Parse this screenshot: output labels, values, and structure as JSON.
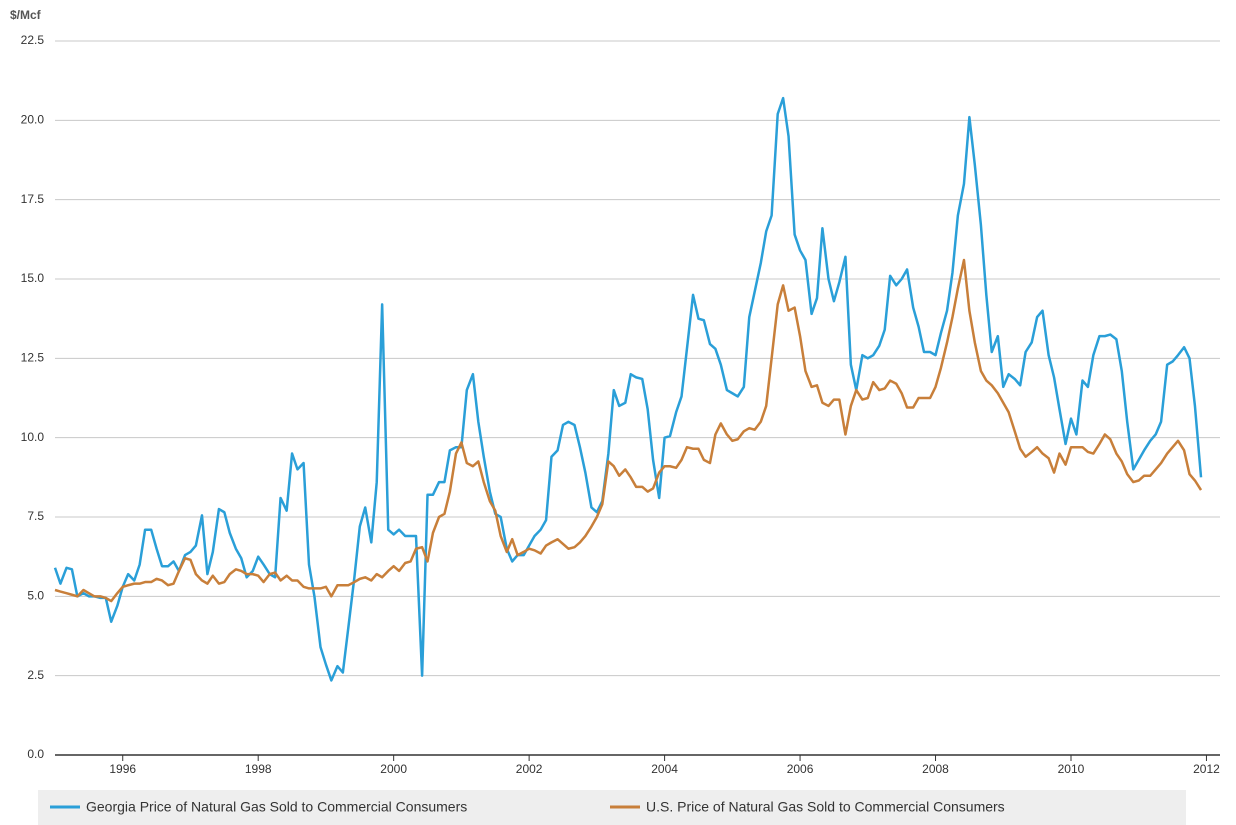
{
  "chart_data": {
    "type": "line",
    "y_label": "$/Mcf",
    "x": [
      1995.0,
      1995.08,
      1995.17,
      1995.25,
      1995.33,
      1995.42,
      1995.5,
      1995.58,
      1995.67,
      1995.75,
      1995.83,
      1995.92,
      1996.0,
      1996.08,
      1996.17,
      1996.25,
      1996.33,
      1996.42,
      1996.5,
      1996.58,
      1996.67,
      1996.75,
      1996.83,
      1996.92,
      1997.0,
      1997.08,
      1997.17,
      1997.25,
      1997.33,
      1997.42,
      1997.5,
      1997.58,
      1997.67,
      1997.75,
      1997.83,
      1997.92,
      1998.0,
      1998.08,
      1998.17,
      1998.25,
      1998.33,
      1998.42,
      1998.5,
      1998.58,
      1998.67,
      1998.75,
      1998.83,
      1998.92,
      1999.0,
      1999.08,
      1999.17,
      1999.25,
      1999.33,
      1999.42,
      1999.5,
      1999.58,
      1999.67,
      1999.75,
      1999.83,
      1999.92,
      2000.0,
      2000.08,
      2000.17,
      2000.25,
      2000.33,
      2000.42,
      2000.5,
      2000.58,
      2000.67,
      2000.75,
      2000.83,
      2000.92,
      2001.0,
      2001.08,
      2001.17,
      2001.25,
      2001.33,
      2001.42,
      2001.5,
      2001.58,
      2001.67,
      2001.75,
      2001.83,
      2001.92,
      2002.0,
      2002.08,
      2002.17,
      2002.25,
      2002.33,
      2002.42,
      2002.5,
      2002.58,
      2002.67,
      2002.75,
      2002.83,
      2002.92,
      2003.0,
      2003.08,
      2003.17,
      2003.25,
      2003.33,
      2003.42,
      2003.5,
      2003.58,
      2003.67,
      2003.75,
      2003.83,
      2003.92,
      2004.0,
      2004.08,
      2004.17,
      2004.25,
      2004.33,
      2004.42,
      2004.5,
      2004.58,
      2004.67,
      2004.75,
      2004.83,
      2004.92,
      2005.0,
      2005.08,
      2005.17,
      2005.25,
      2005.33,
      2005.42,
      2005.5,
      2005.58,
      2005.67,
      2005.75,
      2005.83,
      2005.92,
      2006.0,
      2006.08,
      2006.17,
      2006.25,
      2006.33,
      2006.42,
      2006.5,
      2006.58,
      2006.67,
      2006.75,
      2006.83,
      2006.92,
      2007.0,
      2007.08,
      2007.17,
      2007.25,
      2007.33,
      2007.42,
      2007.5,
      2007.58,
      2007.67,
      2007.75,
      2007.83,
      2007.92,
      2008.0,
      2008.08,
      2008.17,
      2008.25,
      2008.33,
      2008.42,
      2008.5,
      2008.58,
      2008.67,
      2008.75,
      2008.83,
      2008.92,
      2009.0,
      2009.08,
      2009.17,
      2009.25,
      2009.33,
      2009.42,
      2009.5,
      2009.58,
      2009.67,
      2009.75,
      2009.83,
      2009.92,
      2010.0,
      2010.08,
      2010.17,
      2010.25,
      2010.33,
      2010.42,
      2010.5,
      2010.58,
      2010.67,
      2010.75,
      2010.83,
      2010.92,
      2011.0,
      2011.08,
      2011.17,
      2011.25,
      2011.33,
      2011.42,
      2011.5,
      2011.58,
      2011.67,
      2011.75,
      2011.83,
      2011.92
    ],
    "series": [
      {
        "name": "Georgia Price of Natural Gas Sold to Commercial Consumers",
        "color": "#2a9fd8",
        "values": [
          5.9,
          5.4,
          5.9,
          5.85,
          5.0,
          5.1,
          5.0,
          5.0,
          4.95,
          4.95,
          4.2,
          4.7,
          5.3,
          5.7,
          5.5,
          6.0,
          7.1,
          7.1,
          6.5,
          5.95,
          5.95,
          6.1,
          5.8,
          6.3,
          6.4,
          6.6,
          7.55,
          5.7,
          6.4,
          7.75,
          7.65,
          7.0,
          6.5,
          6.2,
          5.6,
          5.8,
          6.25,
          6.0,
          5.7,
          5.6,
          8.1,
          7.7,
          9.5,
          9.0,
          9.2,
          6.0,
          5.0,
          3.4,
          2.85,
          2.35,
          2.8,
          2.6,
          4.0,
          5.6,
          7.2,
          7.8,
          6.7,
          8.6,
          14.2,
          7.1,
          6.95,
          7.1,
          6.9,
          6.9,
          6.9,
          2.5,
          8.2,
          8.2,
          8.6,
          8.6,
          9.6,
          9.7,
          9.7,
          11.5,
          12.0,
          10.5,
          9.4,
          8.3,
          7.6,
          7.5,
          6.5,
          6.1,
          6.3,
          6.3,
          6.6,
          6.9,
          7.1,
          7.4,
          9.4,
          9.6,
          10.4,
          10.5,
          10.4,
          9.7,
          8.9,
          7.8,
          7.65,
          8.0,
          9.5,
          11.5,
          11.0,
          11.1,
          12.0,
          11.9,
          11.85,
          10.9,
          9.3,
          8.1,
          10.0,
          10.05,
          10.8,
          11.3,
          12.8,
          14.5,
          13.75,
          13.7,
          12.95,
          12.8,
          12.3,
          11.5,
          11.4,
          11.3,
          11.6,
          13.8,
          14.6,
          15.5,
          16.5,
          17.0,
          20.2,
          20.7,
          19.5,
          16.4,
          15.9,
          15.6,
          13.9,
          14.4,
          16.6,
          15.0,
          14.3,
          14.9,
          15.7,
          12.3,
          11.5,
          12.6,
          12.5,
          12.6,
          12.9,
          13.4,
          15.1,
          14.8,
          15.0,
          15.3,
          14.1,
          13.5,
          12.7,
          12.7,
          12.6,
          13.3,
          14.0,
          15.2,
          17.0,
          18.0,
          20.1,
          18.6,
          16.7,
          14.5,
          12.7,
          13.2,
          11.6,
          12.0,
          11.85,
          11.65,
          12.7,
          13.0,
          13.8,
          14.0,
          12.6,
          11.9,
          10.9,
          9.8,
          10.6,
          10.1,
          11.8,
          11.6,
          12.6,
          13.2,
          13.2,
          13.25,
          13.1,
          12.1,
          10.5,
          9.0,
          9.3,
          9.6,
          9.9,
          10.1,
          10.5,
          12.3,
          12.4,
          12.6,
          12.85,
          12.5,
          11.0,
          8.75
        ]
      },
      {
        "name": "U.S. Price of Natural Gas Sold to Commercial Consumers",
        "color": "#c87f3a",
        "values": [
          5.2,
          5.15,
          5.1,
          5.05,
          5.0,
          5.2,
          5.1,
          5.0,
          5.0,
          4.95,
          4.85,
          5.1,
          5.3,
          5.35,
          5.4,
          5.4,
          5.45,
          5.45,
          5.55,
          5.5,
          5.35,
          5.4,
          5.8,
          6.2,
          6.15,
          5.7,
          5.5,
          5.4,
          5.65,
          5.4,
          5.45,
          5.7,
          5.85,
          5.8,
          5.7,
          5.7,
          5.65,
          5.45,
          5.7,
          5.75,
          5.5,
          5.65,
          5.5,
          5.5,
          5.3,
          5.25,
          5.25,
          5.25,
          5.3,
          5.0,
          5.35,
          5.35,
          5.35,
          5.45,
          5.55,
          5.6,
          5.5,
          5.7,
          5.6,
          5.8,
          5.95,
          5.8,
          6.05,
          6.1,
          6.5,
          6.55,
          6.1,
          7.0,
          7.5,
          7.6,
          8.3,
          9.5,
          9.85,
          9.2,
          9.1,
          9.25,
          8.6,
          8.0,
          7.7,
          6.9,
          6.4,
          6.8,
          6.3,
          6.4,
          6.5,
          6.45,
          6.35,
          6.6,
          6.7,
          6.8,
          6.65,
          6.5,
          6.55,
          6.7,
          6.9,
          7.2,
          7.5,
          7.9,
          9.25,
          9.1,
          8.8,
          9.0,
          8.75,
          8.45,
          8.45,
          8.3,
          8.4,
          8.9,
          9.1,
          9.1,
          9.05,
          9.3,
          9.7,
          9.65,
          9.65,
          9.3,
          9.2,
          10.1,
          10.45,
          10.1,
          9.9,
          9.95,
          10.2,
          10.3,
          10.25,
          10.5,
          11.0,
          12.5,
          14.2,
          14.8,
          14.0,
          14.1,
          13.2,
          12.1,
          11.6,
          11.65,
          11.1,
          11.0,
          11.2,
          11.2,
          10.1,
          11.0,
          11.5,
          11.2,
          11.25,
          11.75,
          11.5,
          11.55,
          11.8,
          11.7,
          11.4,
          10.95,
          10.95,
          11.25,
          11.25,
          11.25,
          11.6,
          12.2,
          13.0,
          13.8,
          14.7,
          15.6,
          14.0,
          13.0,
          12.1,
          11.8,
          11.65,
          11.4,
          11.1,
          10.8,
          10.2,
          9.65,
          9.4,
          9.55,
          9.7,
          9.5,
          9.35,
          8.9,
          9.5,
          9.15,
          9.7,
          9.7,
          9.7,
          9.55,
          9.5,
          9.8,
          10.1,
          9.95,
          9.5,
          9.25,
          8.85,
          8.6,
          8.65,
          8.8,
          8.8,
          9.0,
          9.2,
          9.5,
          9.7,
          9.9,
          9.6,
          8.85,
          8.65,
          8.35
        ]
      }
    ],
    "xlim": [
      1995,
      2012.2
    ],
    "xticks": [
      1996,
      1998,
      2000,
      2002,
      2004,
      2006,
      2008,
      2010,
      2012
    ],
    "ylim": [
      0,
      22.5
    ],
    "yticks": [
      {
        "value": 0,
        "label": "0.0"
      },
      2.5,
      {
        "value": 5,
        "label": "5.0"
      },
      7.5,
      {
        "value": 10,
        "label": "10.0"
      },
      12.5,
      {
        "value": 15,
        "label": "15.0"
      },
      17.5,
      {
        "value": 20,
        "label": "20.0"
      },
      22.5
    ],
    "grid": true
  }
}
